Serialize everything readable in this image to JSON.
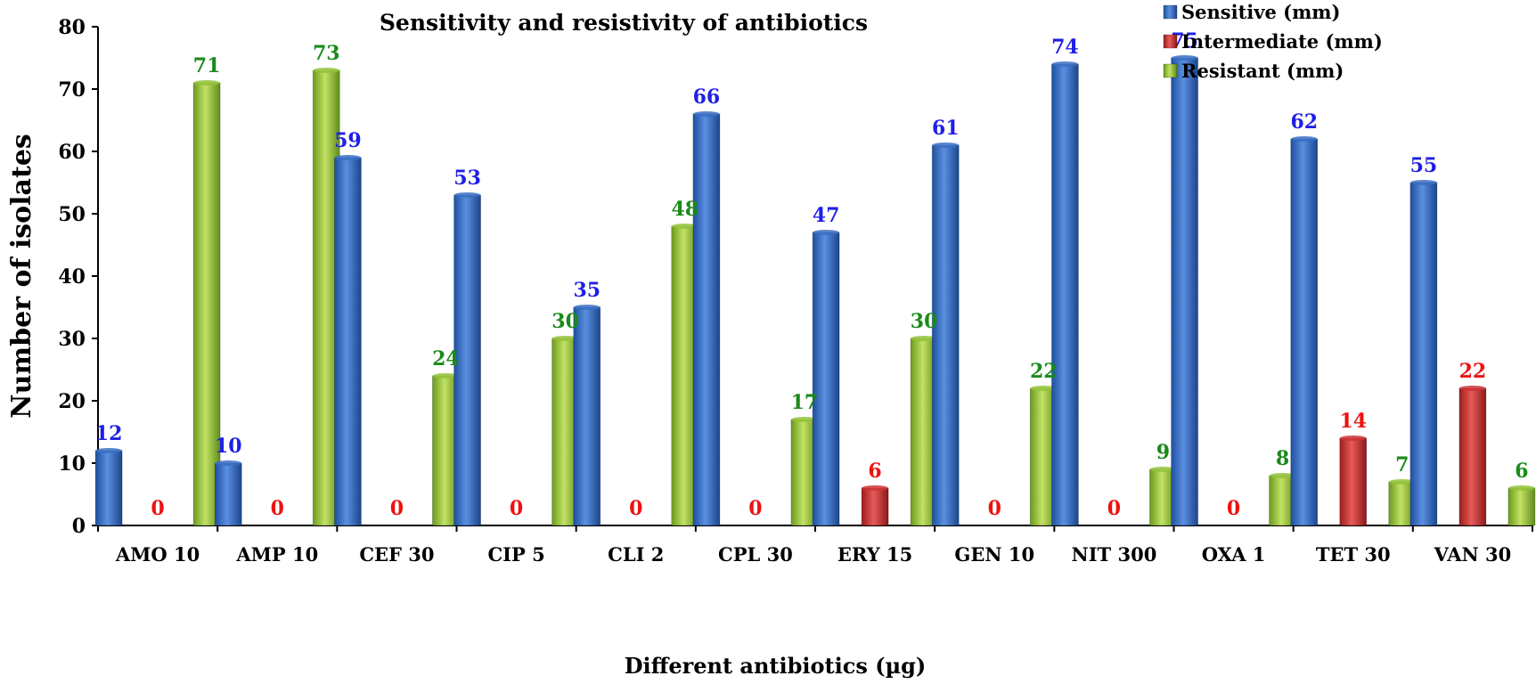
{
  "chart_data": {
    "type": "bar",
    "title": "Sensitivity and resistivity of antibiotics",
    "xlabel": "Different antibiotics (µg)",
    "ylabel": "Number of isolates",
    "ylim": [
      0,
      80
    ],
    "yticks": [
      0,
      10,
      20,
      30,
      40,
      50,
      60,
      70,
      80
    ],
    "grid": false,
    "legend_position": "top-right",
    "categories": [
      "AMO 10",
      "AMP 10",
      "CEF 30",
      "CIP 5",
      "CLI 2",
      "CPL 30",
      "ERY 15",
      "GEN 10",
      "NIT 300",
      "OXA 1",
      "TET 30",
      "VAN 30"
    ],
    "series": [
      {
        "name": "Sensitive (mm)",
        "color": "#3a6fc4",
        "label_color": "#1f1fe6",
        "values": [
          12,
          10,
          59,
          53,
          35,
          66,
          47,
          61,
          74,
          75,
          62,
          55
        ]
      },
      {
        "name": "Intermediate (mm)",
        "color": "#cc3333",
        "label_color": "#ee1111",
        "values": [
          0,
          0,
          0,
          0,
          0,
          0,
          6,
          0,
          0,
          0,
          14,
          22
        ]
      },
      {
        "name": "Resistant (mm)",
        "color": "#93c23a",
        "label_color": "#1a8a1a",
        "values": [
          71,
          73,
          24,
          30,
          48,
          17,
          30,
          22,
          9,
          8,
          7,
          6
        ]
      }
    ]
  }
}
